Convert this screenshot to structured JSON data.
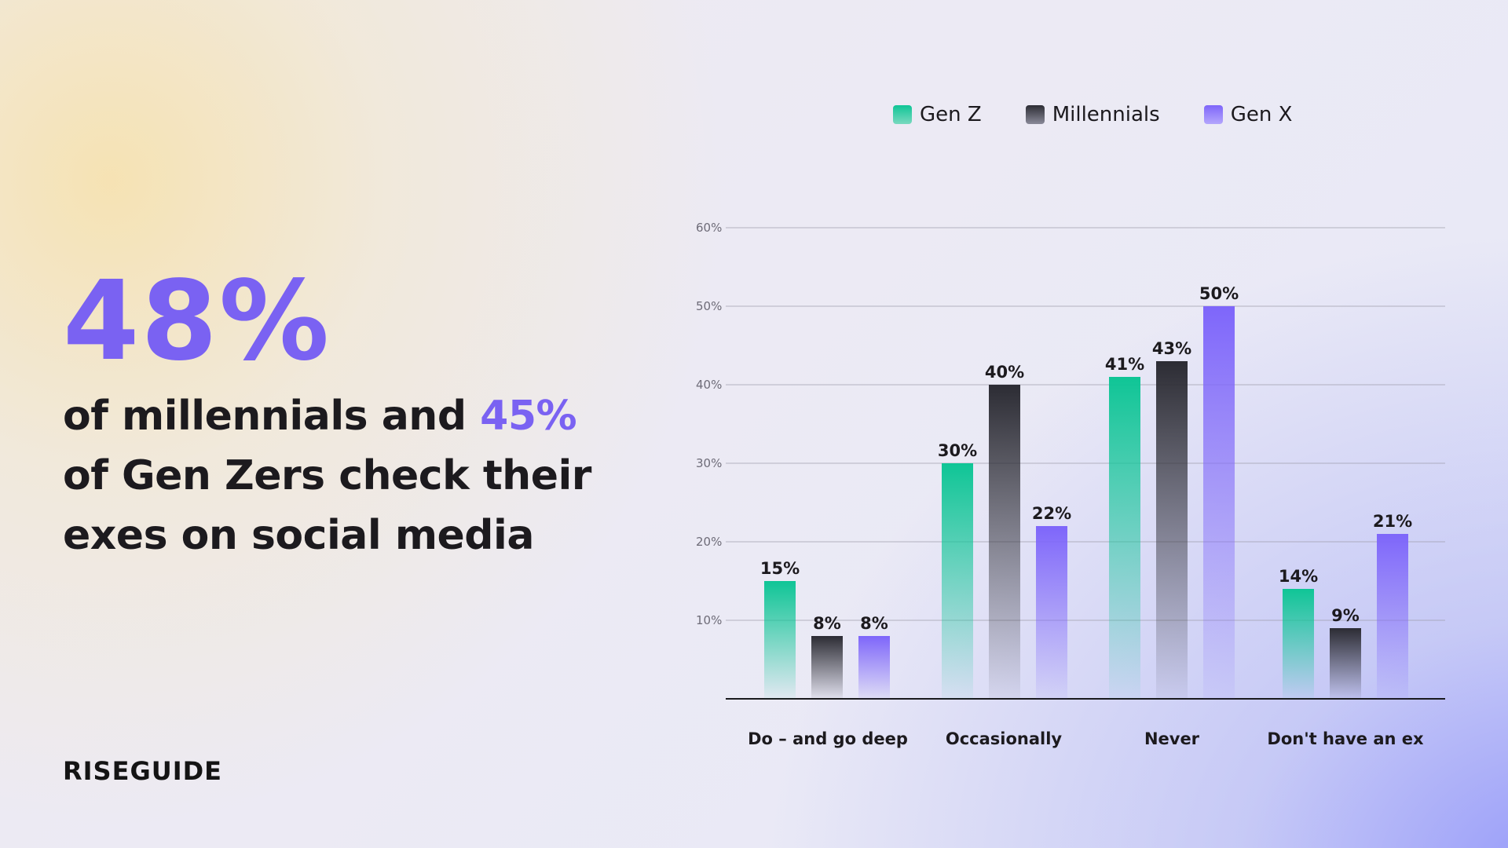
{
  "headline": {
    "big_stat": "48%",
    "line_part1": "of millennials and",
    "accent_stat": "45%",
    "line_part2": "of Gen Zers check their exes on social media"
  },
  "brand": {
    "logo_text": "RISEGUIDE"
  },
  "colors": {
    "gen_z": "#0fc596",
    "millennials": "#2c2c34",
    "gen_x": "#7e66fa",
    "accent": "#7a62f2"
  },
  "chart_data": {
    "type": "bar",
    "categories": [
      "Do – and go deep",
      "Occasionally",
      "Never",
      "Don't have an ex"
    ],
    "series": [
      {
        "name": "Gen Z",
        "values": [
          15,
          30,
          41,
          14
        ],
        "labels": [
          "15%",
          "30%",
          "41%",
          "14%"
        ]
      },
      {
        "name": "Millennials",
        "values": [
          8,
          40,
          43,
          9
        ],
        "labels": [
          "8%",
          "40%",
          "43%",
          "9%"
        ]
      },
      {
        "name": "Gen X",
        "values": [
          8,
          22,
          50,
          21
        ],
        "labels": [
          "8%",
          "22%",
          "50%",
          "21%"
        ]
      }
    ],
    "y_ticks": [
      {
        "value": 10,
        "label": "10%"
      },
      {
        "value": 20,
        "label": "20%"
      },
      {
        "value": 30,
        "label": "30%"
      },
      {
        "value": 40,
        "label": "40%"
      },
      {
        "value": 50,
        "label": "50%"
      },
      {
        "value": 60,
        "label": "60%"
      }
    ],
    "ylim": [
      0,
      60
    ],
    "grid": true,
    "legend_position": "top"
  }
}
